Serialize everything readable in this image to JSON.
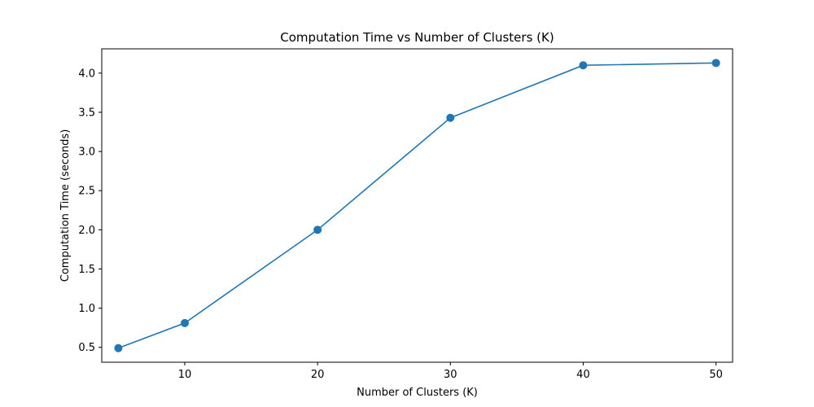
{
  "chart_data": {
    "type": "line",
    "title": "Computation Time vs Number of Clusters (K)",
    "xlabel": "Number of Clusters (K)",
    "ylabel": "Computation Time (seconds)",
    "xlim": [
      3.75,
      51.25
    ],
    "ylim": [
      0.31,
      4.31
    ],
    "xticks": [
      10,
      20,
      30,
      40,
      50
    ],
    "yticks": [
      0.5,
      1.0,
      1.5,
      2.0,
      2.5,
      3.0,
      3.5,
      4.0
    ],
    "grid": false,
    "series": [
      {
        "color": "#1f77b4",
        "marker": "circle",
        "x": [
          5,
          10,
          20,
          30,
          40,
          50
        ],
        "y": [
          0.49,
          0.81,
          2.0,
          3.43,
          4.1,
          4.13
        ]
      }
    ]
  }
}
